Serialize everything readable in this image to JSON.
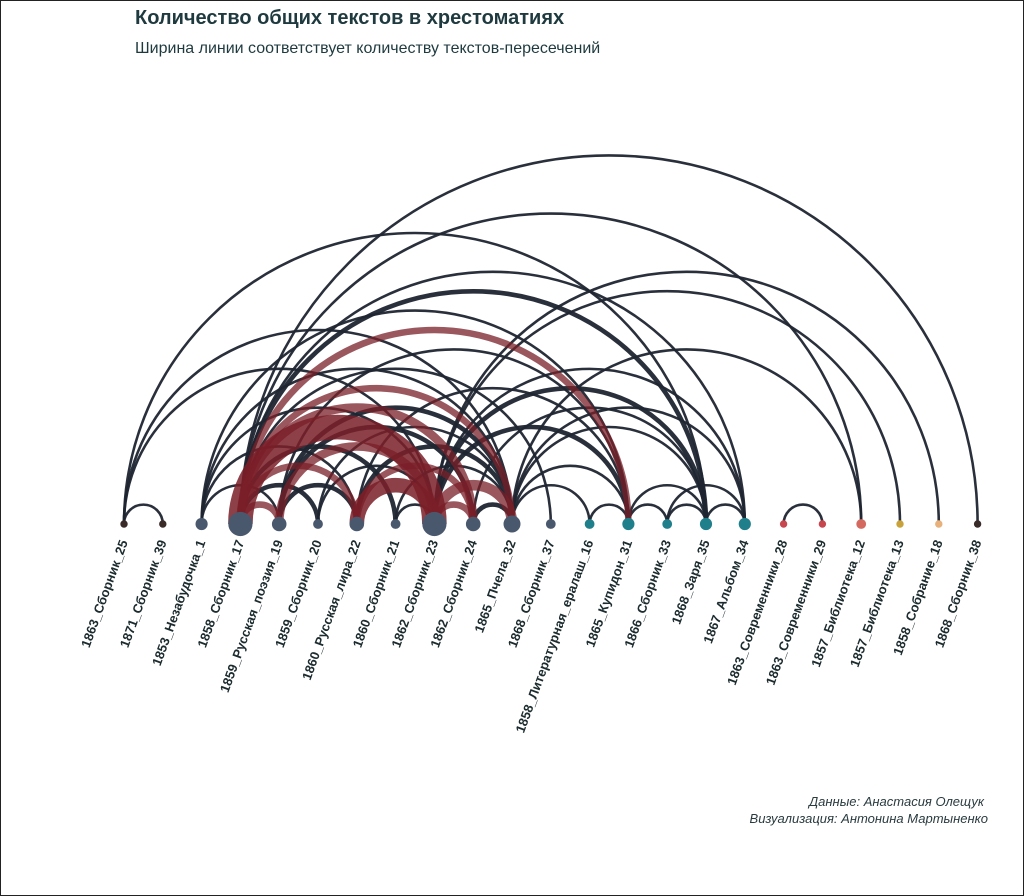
{
  "title": "Количество общих текстов в хрестоматиях",
  "subtitle": "Ширина линии соответствует количеству текстов-пересечений",
  "credits": {
    "data": "Данные: Анастасия Олещук",
    "viz": "Визуализация: Антонина Мартыненко"
  },
  "colors": {
    "edge_default": "#1f2530",
    "edge_strong": "#7a1f28",
    "slate": "#4a586e",
    "teal": "#1f7f8a",
    "dark": "#3a2a28",
    "red": "#c8474f",
    "salmon": "#d46a5f",
    "gold": "#c9a23a",
    "peach": "#e8b07a"
  },
  "chart_data": {
    "type": "arc",
    "title": "Количество общих текстов в хрестоматиях",
    "subtitle": "Ширина линии соответствует количеству текстов-пересечений",
    "nodes": [
      {
        "id": "1863_Сборник_25",
        "size": 1,
        "group": "dark"
      },
      {
        "id": "1871_Сборник_39",
        "size": 1,
        "group": "dark"
      },
      {
        "id": "1853_Незабудочка_1",
        "size": 3,
        "group": "slate"
      },
      {
        "id": "1858_Сборник_17",
        "size": 8,
        "group": "slate"
      },
      {
        "id": "1859_Русская_поэзия_19",
        "size": 4,
        "group": "slate"
      },
      {
        "id": "1859_Сборник_20",
        "size": 2,
        "group": "slate"
      },
      {
        "id": "1860_Русская_лира_22",
        "size": 4,
        "group": "slate"
      },
      {
        "id": "1860_Сборник_21",
        "size": 2,
        "group": "slate"
      },
      {
        "id": "1862_Сборник_23",
        "size": 8,
        "group": "slate"
      },
      {
        "id": "1862_Сборник_24",
        "size": 4,
        "group": "slate"
      },
      {
        "id": "1865_Пчела_32",
        "size": 5,
        "group": "slate"
      },
      {
        "id": "1868_Сборник_37",
        "size": 2,
        "group": "slate"
      },
      {
        "id": "1858_Литературная_ералаш_16",
        "size": 2,
        "group": "teal"
      },
      {
        "id": "1865_Купидон_31",
        "size": 3,
        "group": "teal"
      },
      {
        "id": "1866_Сборник_33",
        "size": 2,
        "group": "teal"
      },
      {
        "id": "1868_Заря_35",
        "size": 3,
        "group": "teal"
      },
      {
        "id": "1867_Альбом_34",
        "size": 3,
        "group": "teal"
      },
      {
        "id": "1863_Современники_28",
        "size": 1,
        "group": "red"
      },
      {
        "id": "1863_Современники_29",
        "size": 1,
        "group": "red"
      },
      {
        "id": "1857_Библиотека_12",
        "size": 2,
        "group": "salmon"
      },
      {
        "id": "1857_Библиотека_13",
        "size": 1,
        "group": "gold"
      },
      {
        "id": "1858_Собрание_18",
        "size": 1,
        "group": "peach"
      },
      {
        "id": "1868_Сборник_38",
        "size": 1,
        "group": "dark"
      }
    ],
    "edges": [
      [
        0,
        1,
        1
      ],
      [
        0,
        8,
        1
      ],
      [
        0,
        15,
        1
      ],
      [
        0,
        10,
        1
      ],
      [
        2,
        8,
        1
      ],
      [
        2,
        10,
        1
      ],
      [
        2,
        13,
        1
      ],
      [
        2,
        4,
        1
      ],
      [
        2,
        6,
        1
      ],
      [
        3,
        4,
        3
      ],
      [
        3,
        5,
        2
      ],
      [
        3,
        6,
        3
      ],
      [
        3,
        7,
        2
      ],
      [
        3,
        8,
        12
      ],
      [
        3,
        9,
        4
      ],
      [
        3,
        10,
        3
      ],
      [
        3,
        11,
        1
      ],
      [
        3,
        13,
        3
      ],
      [
        3,
        15,
        2
      ],
      [
        3,
        16,
        1
      ],
      [
        3,
        22,
        1
      ],
      [
        3,
        19,
        1
      ],
      [
        4,
        6,
        2
      ],
      [
        4,
        8,
        4
      ],
      [
        4,
        10,
        2
      ],
      [
        4,
        9,
        2
      ],
      [
        4,
        13,
        1
      ],
      [
        5,
        8,
        1
      ],
      [
        5,
        10,
        1
      ],
      [
        6,
        8,
        7
      ],
      [
        6,
        9,
        3
      ],
      [
        6,
        10,
        2
      ],
      [
        6,
        13,
        1
      ],
      [
        7,
        8,
        1
      ],
      [
        7,
        10,
        1
      ],
      [
        8,
        9,
        3
      ],
      [
        8,
        10,
        5
      ],
      [
        8,
        13,
        2
      ],
      [
        8,
        15,
        2
      ],
      [
        8,
        16,
        1
      ],
      [
        8,
        20,
        1
      ],
      [
        8,
        21,
        1
      ],
      [
        9,
        10,
        2
      ],
      [
        9,
        15,
        1
      ],
      [
        10,
        12,
        1
      ],
      [
        10,
        13,
        1
      ],
      [
        10,
        15,
        1
      ],
      [
        10,
        16,
        1
      ],
      [
        10,
        19,
        1
      ],
      [
        12,
        13,
        1
      ],
      [
        13,
        14,
        1
      ],
      [
        13,
        15,
        1
      ],
      [
        14,
        16,
        1
      ],
      [
        14,
        15,
        1
      ],
      [
        15,
        16,
        1
      ],
      [
        17,
        18,
        1
      ]
    ]
  }
}
